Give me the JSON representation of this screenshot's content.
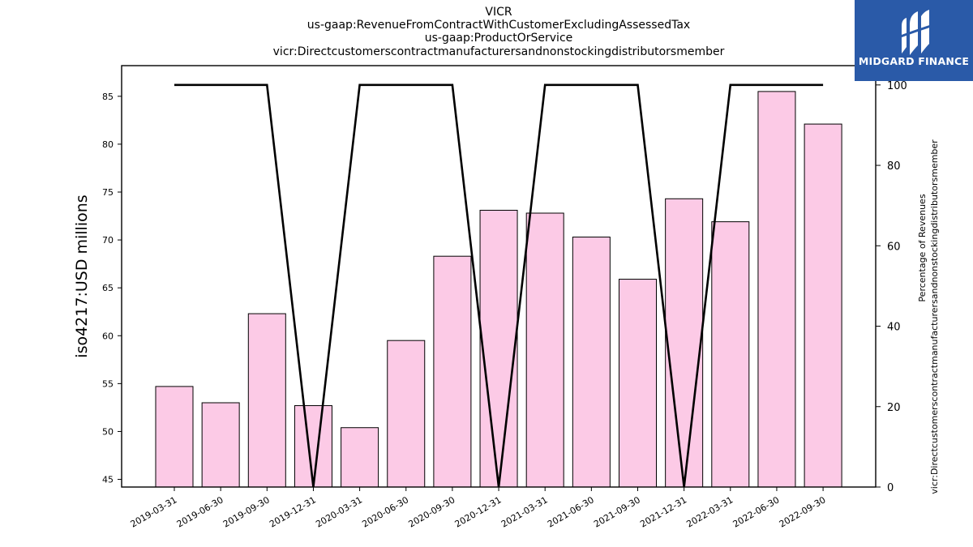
{
  "title_lines": [
    "VICR",
    "us-gaap:RevenueFromContractWithCustomerExcludingAssessedTax",
    "us-gaap:ProductOrService",
    "vicr:Directcustomerscontractmanufacturersandnonstockingdistributorsmember"
  ],
  "logo": {
    "text": "MIDGARD FINANCE",
    "bg": "#2a5aa8"
  },
  "chart_data": {
    "type": "bar",
    "categories": [
      "2019-03-31",
      "2019-06-30",
      "2019-09-30",
      "2019-12-31",
      "2020-03-31",
      "2020-06-30",
      "2020-09-30",
      "2020-12-31",
      "2021-03-31",
      "2021-06-30",
      "2021-09-30",
      "2021-12-31",
      "2022-03-31",
      "2022-06-30",
      "2022-09-30"
    ],
    "values": [
      54.7,
      53.0,
      62.3,
      52.7,
      50.4,
      59.5,
      68.3,
      73.1,
      72.8,
      70.3,
      65.9,
      74.3,
      71.9,
      85.5,
      82.1
    ],
    "line_values": [
      100,
      100,
      100,
      0,
      100,
      100,
      100,
      0,
      100,
      100,
      100,
      0,
      100,
      100,
      100
    ],
    "ylabel": "iso4217:USD  millions",
    "y2label_lines": [
      "Percentage of Revenues",
      "vicr:Directcustomerscontractmanufacturersandnonstockingdistributorsmember"
    ],
    "ylim": [
      44.2,
      88.2
    ],
    "y2lim": [
      0,
      104.8
    ],
    "yticks": [
      45,
      50,
      55,
      60,
      65,
      70,
      75,
      80,
      85
    ],
    "y2ticks": [
      0,
      20,
      40,
      60,
      80,
      100
    ],
    "bar_color": "#fccae6",
    "bar_edge": "#000000",
    "line_color": "#000000"
  }
}
